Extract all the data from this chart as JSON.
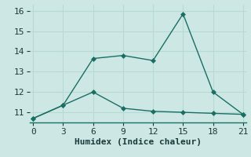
{
  "xlabel": "Humidex (Indice chaleur)",
  "ylabel": "",
  "background_color": "#cde8e4",
  "grid_color": "#b8d8d4",
  "line_color": "#1a6e64",
  "series1_x": [
    0,
    3,
    6,
    9,
    12,
    15,
    18,
    21
  ],
  "series1_y": [
    10.7,
    11.35,
    13.65,
    13.8,
    13.55,
    15.85,
    12.0,
    10.9
  ],
  "series2_x": [
    0,
    3,
    6,
    9,
    12,
    15,
    18,
    21
  ],
  "series2_y": [
    10.7,
    11.35,
    12.0,
    11.2,
    11.05,
    11.0,
    10.95,
    10.9
  ],
  "xlim": [
    -0.3,
    21.3
  ],
  "ylim": [
    10.5,
    16.3
  ],
  "xticks": [
    0,
    3,
    6,
    9,
    12,
    15,
    18,
    21
  ],
  "yticks": [
    11,
    12,
    13,
    14,
    15,
    16
  ],
  "marker_size": 3,
  "line_width": 1.0,
  "font_size": 8
}
